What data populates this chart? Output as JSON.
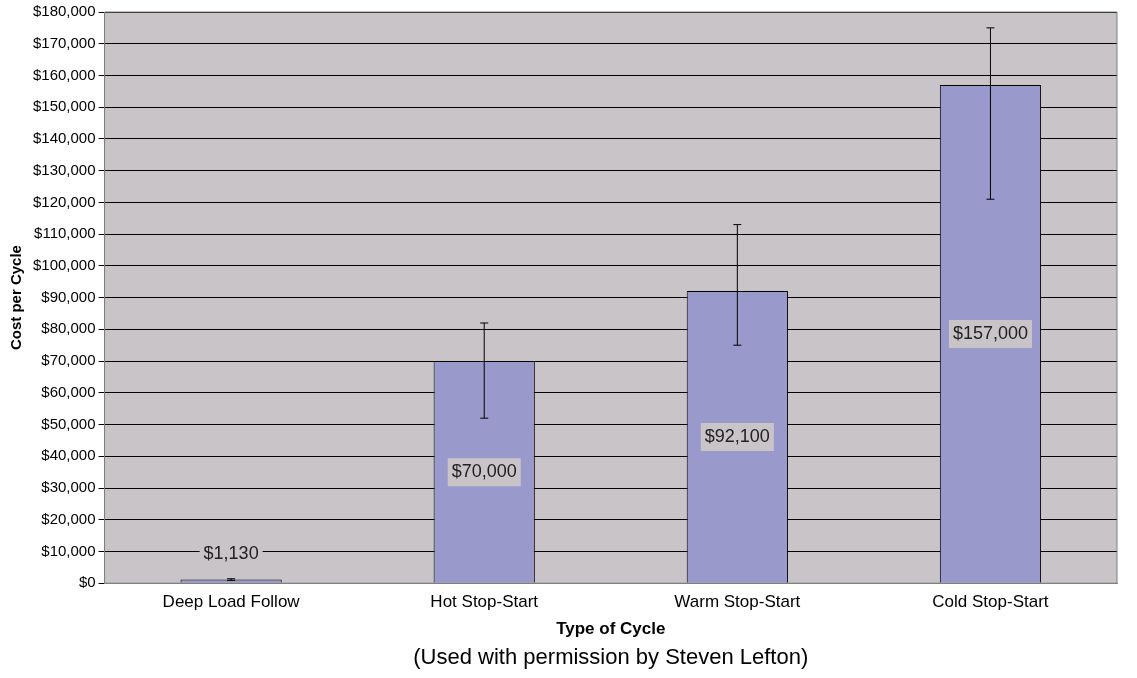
{
  "chart_data": {
    "type": "bar",
    "xlabel": "Type of Cycle",
    "ylabel": "Cost per Cycle",
    "annotations": [
      "(Used with permission by Steven Lefton)"
    ],
    "categories": [
      "Deep Load Follow",
      "Hot Stop-Start",
      "Warm Stop-Start",
      "Cold Stop-Start"
    ],
    "values": [
      1130,
      70000,
      92100,
      157000
    ],
    "value_labels": [
      "$1,130",
      "$70,000",
      "$92,100",
      "$157,000"
    ],
    "errors": [
      [
        900,
        1400
      ],
      [
        52000,
        82000
      ],
      [
        75000,
        113000
      ],
      [
        121000,
        175000
      ]
    ],
    "color": "#9999cc",
    "ylim": [
      0,
      180000
    ],
    "yticks": [
      {
        "value": 0,
        "label": "$0"
      },
      {
        "value": 10000,
        "label": "$10,000"
      },
      {
        "value": 20000,
        "label": "$20,000"
      },
      {
        "value": 30000,
        "label": "$30,000"
      },
      {
        "value": 40000,
        "label": "$40,000"
      },
      {
        "value": 50000,
        "label": "$50,000"
      },
      {
        "value": 60000,
        "label": "$60,000"
      },
      {
        "value": 70000,
        "label": "$70,000"
      },
      {
        "value": 80000,
        "label": "$80,000"
      },
      {
        "value": 90000,
        "label": "$90,000"
      },
      {
        "value": 100000,
        "label": "$100,000"
      },
      {
        "value": 110000,
        "label": "$110,000"
      },
      {
        "value": 120000,
        "label": "$120,000"
      },
      {
        "value": 130000,
        "label": "$130,000"
      },
      {
        "value": 140000,
        "label": "$140,000"
      },
      {
        "value": 150000,
        "label": "$150,000"
      },
      {
        "value": 160000,
        "label": "$160,000"
      },
      {
        "value": 170000,
        "label": "$170,000"
      },
      {
        "value": 180000,
        "label": "$180,000"
      }
    ],
    "grid": "y",
    "legend": false
  }
}
